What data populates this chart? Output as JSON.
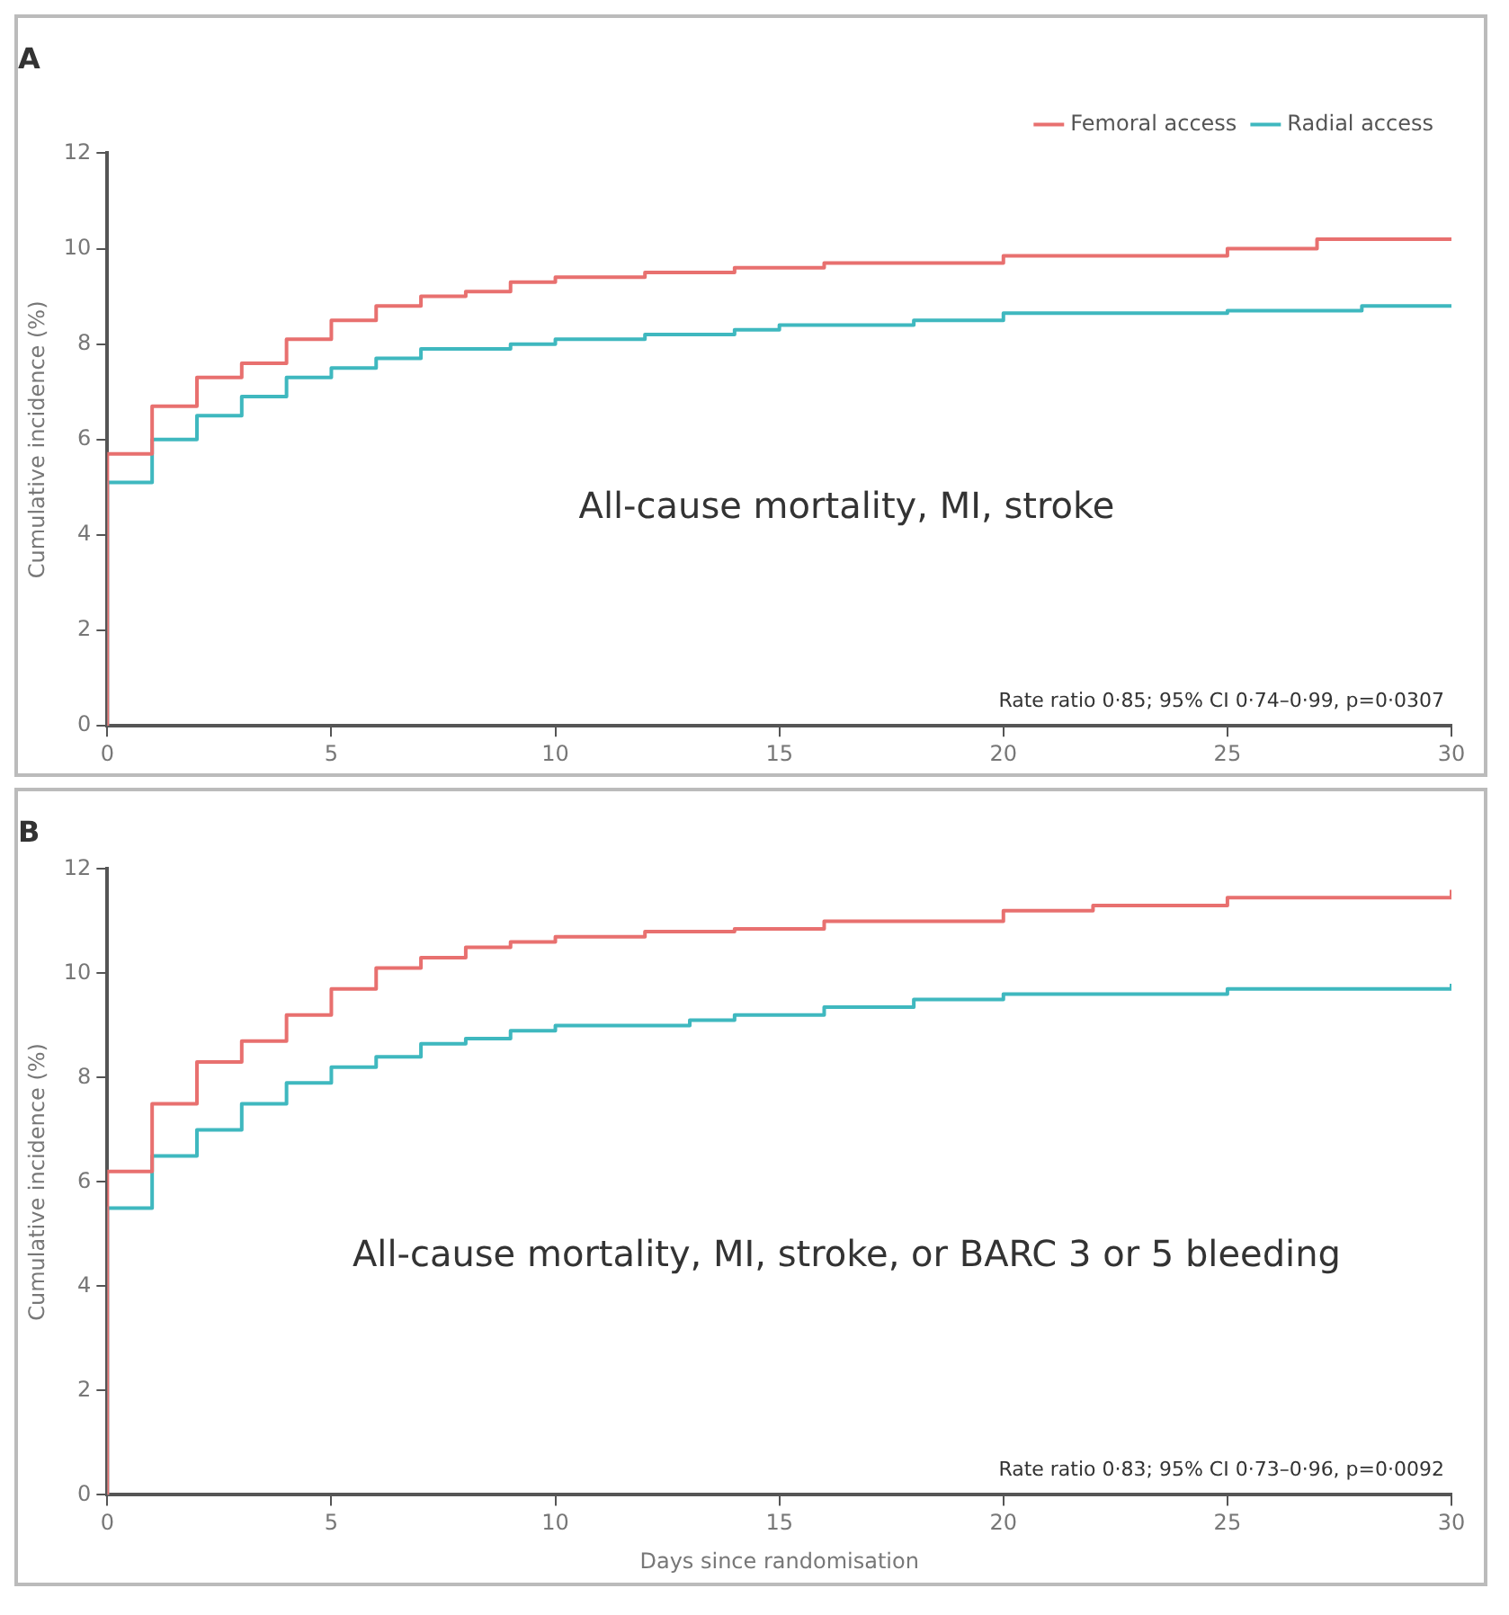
{
  "chart_data": [
    {
      "type": "step",
      "title": "A",
      "ylabel": "Cumulative incidence (%)",
      "xlim": [
        0,
        30
      ],
      "xticks": [
        0,
        5,
        10,
        15,
        20,
        25,
        30
      ],
      "ylim": [
        0,
        12
      ],
      "yticks": [
        0,
        2,
        4,
        6,
        8,
        10,
        12
      ],
      "grid": false,
      "legend": "top right",
      "marker": "none",
      "line_style": "solid",
      "annotations": [
        "All-cause mortality, MI, stroke",
        "Rate ratio 0·85; 95% CI 0·74–0·99, p=0·0307"
      ],
      "series": [
        {
          "name": "Femoral access",
          "color": "#e8706f",
          "x": [
            0,
            0,
            1,
            2,
            3,
            4,
            5,
            6,
            7,
            8,
            9,
            10,
            12,
            14,
            16,
            20,
            25,
            27,
            30
          ],
          "values": [
            0,
            5.7,
            6.7,
            7.3,
            7.6,
            8.1,
            8.5,
            8.8,
            9.0,
            9.1,
            9.3,
            9.4,
            9.5,
            9.6,
            9.7,
            9.85,
            10.0,
            10.2,
            10.2
          ]
        },
        {
          "name": "Radial access",
          "color": "#3fb8bf",
          "x": [
            0,
            0,
            1,
            2,
            3,
            4,
            5,
            6,
            7,
            9,
            10,
            12,
            14,
            15,
            18,
            20,
            25,
            28,
            30
          ],
          "values": [
            0,
            5.1,
            6.0,
            6.5,
            6.9,
            7.3,
            7.5,
            7.7,
            7.9,
            8.0,
            8.1,
            8.2,
            8.3,
            8.4,
            8.5,
            8.65,
            8.7,
            8.8,
            8.8
          ]
        }
      ]
    },
    {
      "type": "step",
      "title": "B",
      "xlabel": "Days since randomisation",
      "ylabel": "Cumulative incidence (%)",
      "xlim": [
        0,
        30
      ],
      "xticks": [
        0,
        5,
        10,
        15,
        20,
        25,
        30
      ],
      "ylim": [
        0,
        12
      ],
      "yticks": [
        0,
        2,
        4,
        6,
        8,
        10,
        12
      ],
      "grid": false,
      "marker": "none",
      "line_style": "solid",
      "annotations": [
        "All-cause mortality, MI, stroke, or BARC 3 or 5 bleeding",
        "Rate ratio 0·83; 95% CI 0·73–0·96, p=0·0092"
      ],
      "series": [
        {
          "color": "#e8706f",
          "x": [
            0,
            0,
            1,
            2,
            3,
            4,
            5,
            6,
            7,
            8,
            9,
            10,
            12,
            14,
            16,
            20,
            22,
            25,
            30
          ],
          "values": [
            0,
            6.2,
            7.5,
            8.3,
            8.7,
            9.2,
            9.7,
            10.1,
            10.3,
            10.5,
            10.6,
            10.7,
            10.8,
            10.85,
            11.0,
            11.2,
            11.3,
            11.45,
            11.6
          ]
        },
        {
          "color": "#3fb8bf",
          "x": [
            0,
            0,
            1,
            2,
            3,
            4,
            5,
            6,
            7,
            8,
            9,
            10,
            13,
            14,
            16,
            18,
            20,
            25,
            30
          ],
          "values": [
            0,
            5.5,
            6.5,
            7.0,
            7.5,
            7.9,
            8.2,
            8.4,
            8.65,
            8.75,
            8.9,
            9.0,
            9.1,
            9.2,
            9.35,
            9.5,
            9.6,
            9.7,
            9.8
          ]
        }
      ]
    }
  ]
}
